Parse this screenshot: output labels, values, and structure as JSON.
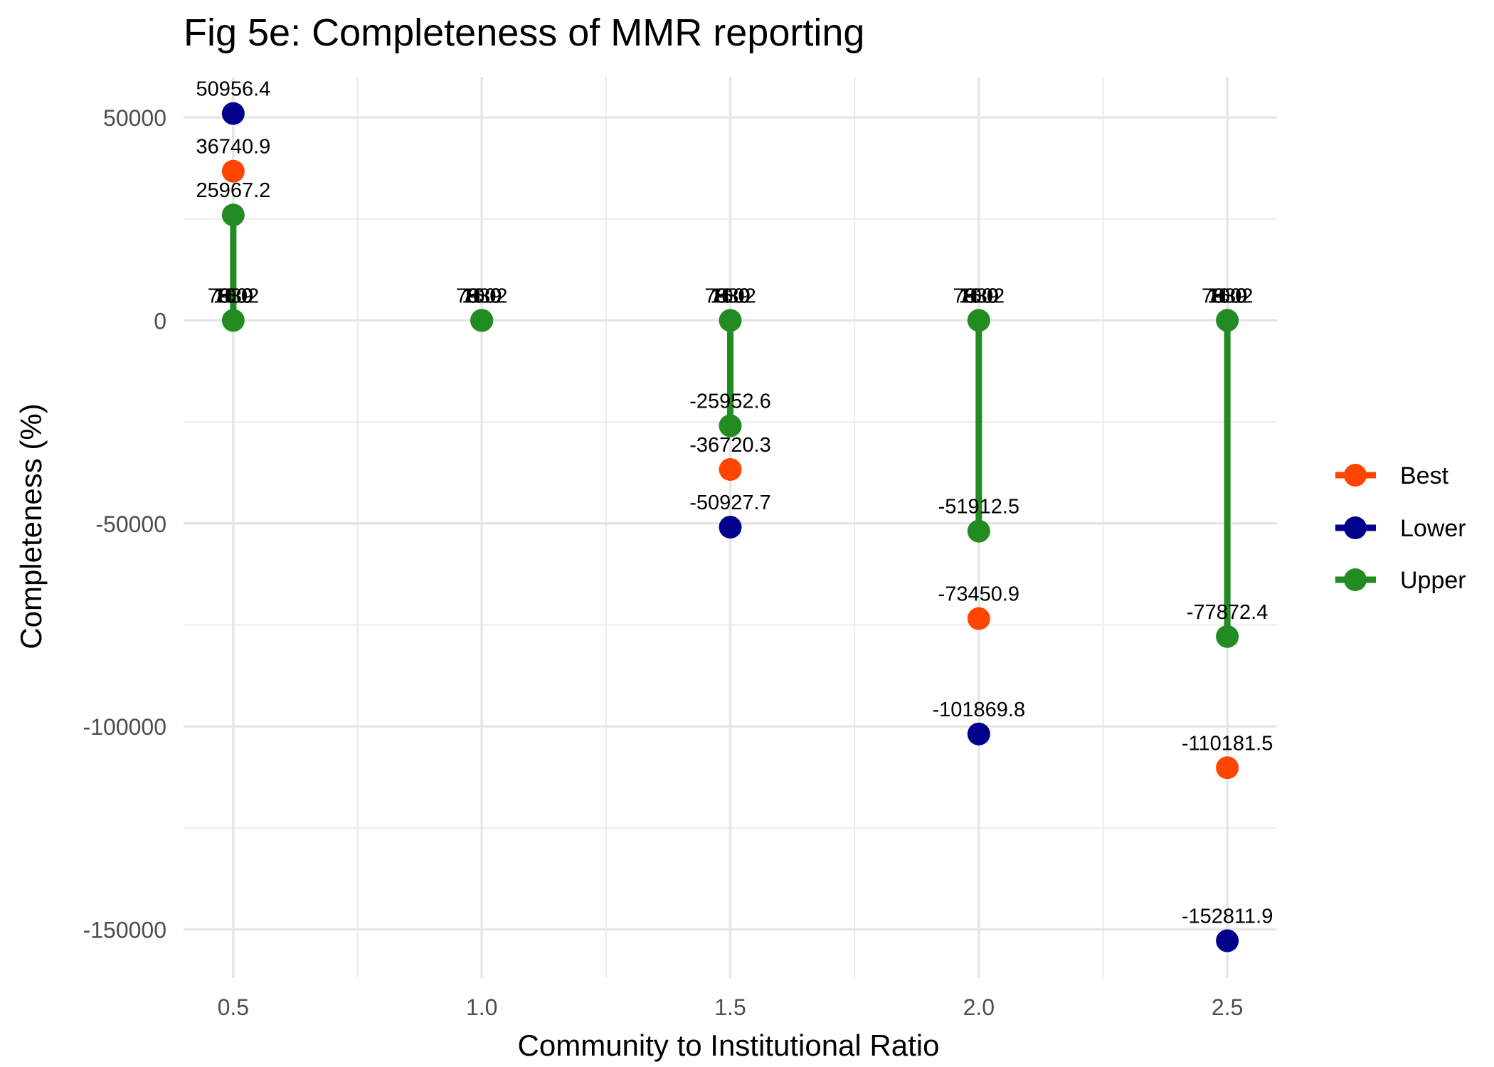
{
  "chart_data": {
    "type": "line",
    "title": "Fig 5e: Completeness of MMR reporting",
    "xlabel": "Community to Institutional Ratio",
    "ylabel": "Completeness (%)",
    "x": [
      0.5,
      1.0,
      1.5,
      2.0,
      2.5
    ],
    "x_tick_labels": [
      "0.5",
      "1.0",
      "1.5",
      "2.0",
      "2.5"
    ],
    "y_ticks": [
      50000,
      0,
      -50000,
      -100000,
      -150000
    ],
    "y_tick_labels": [
      "50000",
      "0",
      "-50000",
      "-100000",
      "-150000"
    ],
    "xlim": [
      0.4,
      2.6
    ],
    "ylim": [
      -162000,
      60000
    ],
    "grid": true,
    "legend_position": "right",
    "series": [
      {
        "name": "Best",
        "color": "#FF4500",
        "values": [
          36740.9,
          0,
          -36720.3,
          -73450.9,
          -110181.5
        ],
        "labels": [
          "36740.9",
          "",
          "-36720.3",
          "-73450.9",
          "-110181.5"
        ]
      },
      {
        "name": "Lower",
        "color": "#00008B",
        "values": [
          50956.4,
          0,
          -50927.7,
          -101869.8,
          -152811.9
        ],
        "labels": [
          "50956.4",
          "",
          "-50927.7",
          "-101869.8",
          "-152811.9"
        ]
      },
      {
        "name": "Upper",
        "color": "#228B22",
        "values": [
          25967.2,
          0,
          -25952.6,
          -51912.5,
          -77872.4
        ],
        "labels": [
          "25967.2",
          "",
          "-25952.6",
          "-51912.5",
          "-77872.4"
        ]
      }
    ],
    "near_zero_points": [
      {
        "x": 0.5,
        "labels": [
          "75.9",
          "753.2",
          "11.0",
          "10.0",
          "9.0",
          "8.0"
        ]
      },
      {
        "x": 1.0,
        "labels": [
          "75.9",
          "753.2",
          "11.0",
          "10.0",
          "9.0",
          "8.0"
        ]
      },
      {
        "x": 1.5,
        "labels": [
          "75.9",
          "753.2",
          "11.0",
          "10.0",
          "9.0",
          "8.0"
        ]
      },
      {
        "x": 2.0,
        "labels": [
          "75.9",
          "753.2",
          "11.0",
          "10.0",
          "9.0",
          "8.0"
        ]
      },
      {
        "x": 2.5,
        "labels": [
          "75.9",
          "753.2",
          "11.0",
          "10.0",
          "9.0",
          "8.0"
        ]
      }
    ]
  }
}
